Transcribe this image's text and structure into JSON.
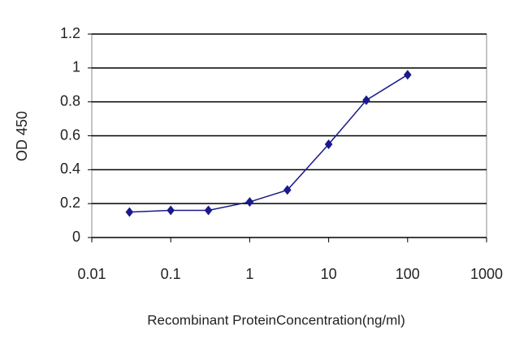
{
  "chart_data": {
    "type": "line",
    "xlabel": "Recombinant ProteinConcentration(ng/ml)",
    "ylabel": "OD 450",
    "x": [
      0.03,
      0.1,
      0.3,
      1,
      3,
      10,
      30,
      100
    ],
    "series": [
      {
        "color": "#1a1a8c",
        "values": [
          0.15,
          0.16,
          0.16,
          0.21,
          0.28,
          0.55,
          0.81,
          0.96
        ]
      }
    ],
    "xscale": "log",
    "xlim": [
      0.01,
      1000
    ],
    "xticks": [
      0.01,
      0.1,
      1,
      10,
      100,
      1000
    ],
    "ylim": [
      0,
      1.2
    ],
    "yticks": [
      0,
      0.2,
      0.4,
      0.6,
      0.8,
      1,
      1.2
    ],
    "grid": true
  }
}
